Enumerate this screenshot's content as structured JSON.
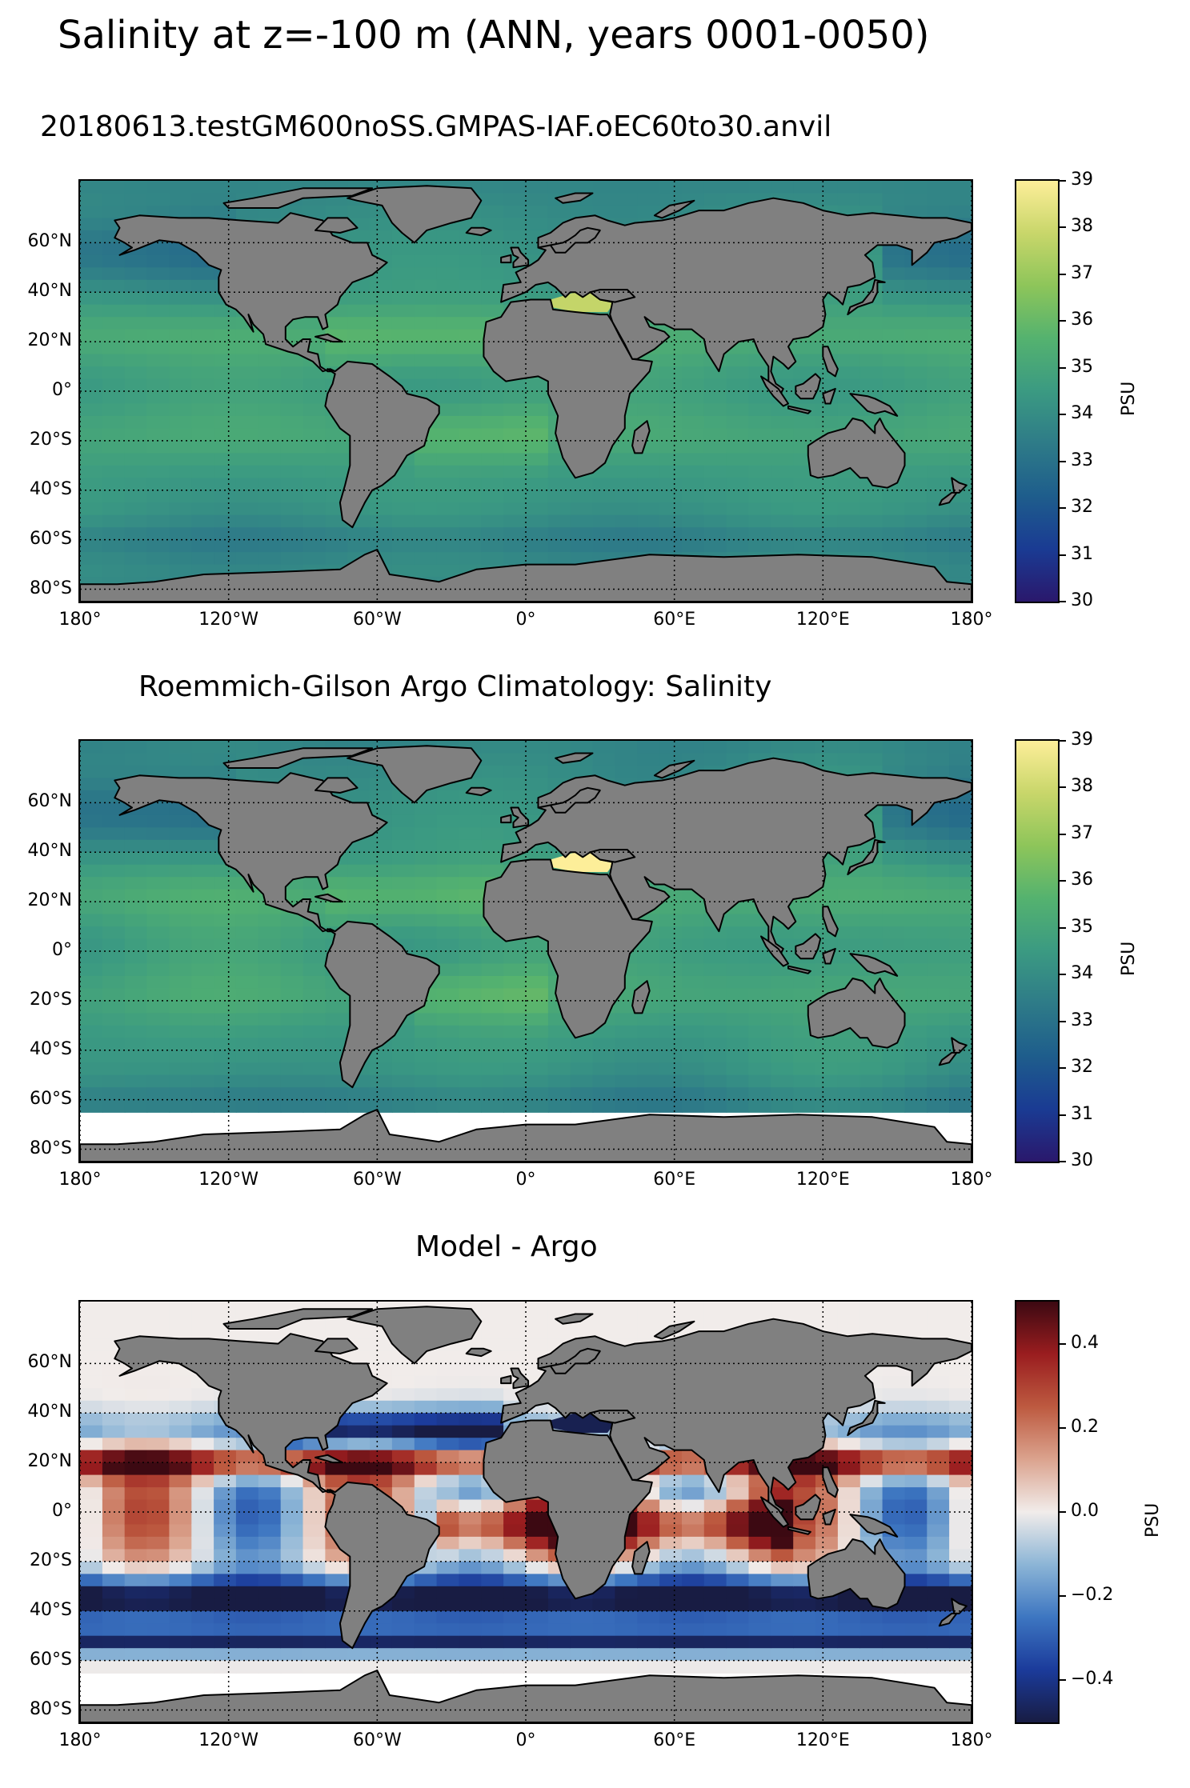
{
  "figure": {
    "title": "Salinity at z=-100 m (ANN, years 0001-0050)"
  },
  "panels": [
    {
      "title": "20180613.testGM600noSS.GMPAS-IAF.oEC60to30.anvil",
      "colormap": "haline",
      "colorbar": {
        "label": "PSU",
        "ticks": [
          "30",
          "31",
          "32",
          "33",
          "34",
          "35",
          "36",
          "37",
          "38",
          "39"
        ],
        "vmin": 30,
        "vmax": 39
      }
    },
    {
      "title": "Roemmich-Gilson Argo Climatology: Salinity",
      "colormap": "haline",
      "colorbar": {
        "label": "PSU",
        "ticks": [
          "30",
          "31",
          "32",
          "33",
          "34",
          "35",
          "36",
          "37",
          "38",
          "39"
        ],
        "vmin": 30,
        "vmax": 39
      }
    },
    {
      "title": "Model - Argo",
      "colormap": "balance",
      "colorbar": {
        "label": "PSU",
        "ticks": [
          "−0.4",
          "−0.2",
          "0.0",
          "0.2",
          "0.4"
        ],
        "vmin": -0.5,
        "vmax": 0.5
      }
    }
  ],
  "axes": {
    "lon_ticks": [
      "180°",
      "120°W",
      "60°W",
      "0°",
      "60°E",
      "120°E",
      "180°"
    ],
    "lat_ticks": [
      "60°N",
      "40°N",
      "20°N",
      "0°",
      "20°S",
      "40°S",
      "60°S",
      "80°S"
    ]
  },
  "colors": {
    "land": "#808080",
    "haline": [
      "#2a186c",
      "#1a3b93",
      "#1e5d8c",
      "#2e7b88",
      "#3b9a82",
      "#54b26f",
      "#8dc55a",
      "#c8d66a",
      "#fdee99"
    ],
    "balance": [
      "#181c43",
      "#1b3b9b",
      "#3d76c1",
      "#8cb5d6",
      "#f1ecea",
      "#dba38e",
      "#bd5a40",
      "#9a1d1f",
      "#3c0912"
    ]
  }
}
